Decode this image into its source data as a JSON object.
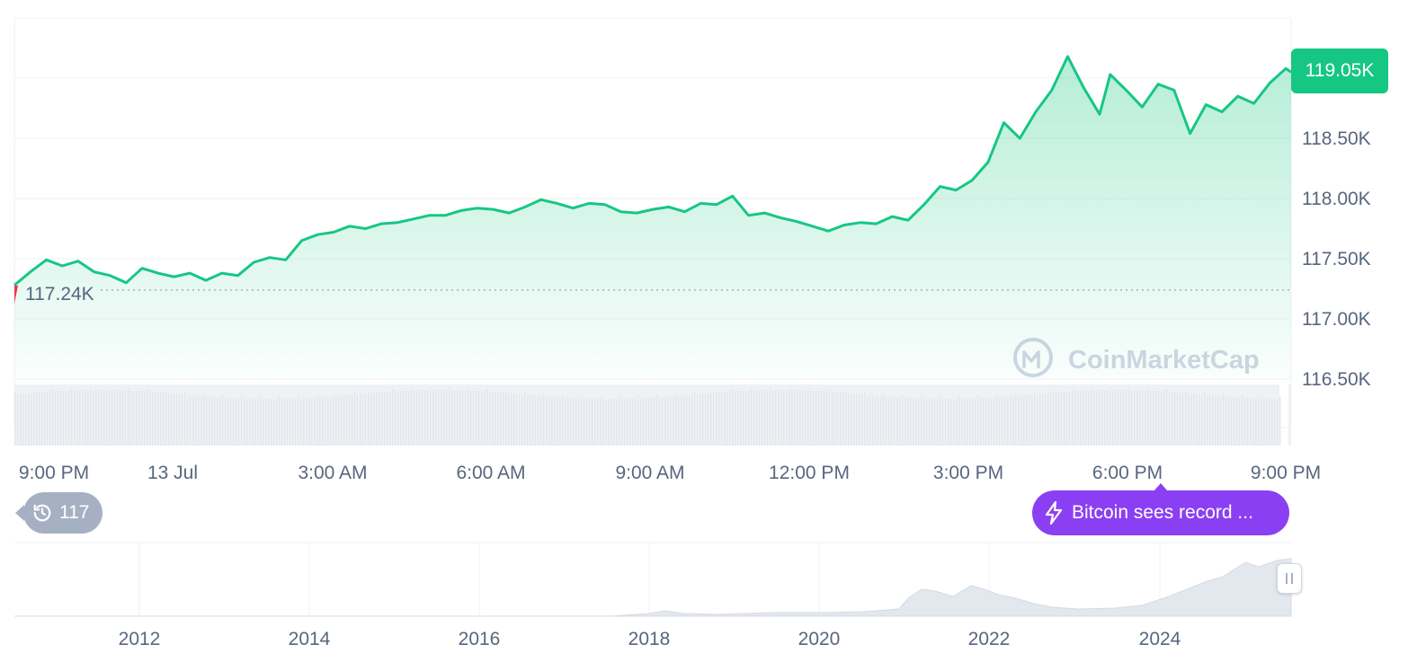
{
  "colors": {
    "up": "#16c784",
    "down": "#ea3943",
    "news": "#8b3ff2",
    "history_badge": "#a6b0c3",
    "axis_text": "#58667e",
    "watermark": "#cfd6e4"
  },
  "price_badge": {
    "value": "119.05K"
  },
  "reference_line": {
    "label": "117.24K"
  },
  "watermark": {
    "text": "CoinMarketCap",
    "icon": "coinmarketcap-logo-icon"
  },
  "history_badge": {
    "count": "117",
    "icon": "history-icon"
  },
  "news_badge": {
    "text": "Bitcoin sees record ...",
    "icon": "lightning-icon"
  },
  "navigator": {
    "ticks": [
      "2012",
      "2014",
      "2016",
      "2018",
      "2020",
      "2022",
      "2024"
    ]
  },
  "chart_data": {
    "type": "line",
    "x_ticks": [
      "9:00 PM",
      "13 Jul",
      "3:00 AM",
      "6:00 AM",
      "9:00 AM",
      "12:00 PM",
      "3:00 PM",
      "6:00 PM",
      "9:00 PM"
    ],
    "y_ticks": [
      "119.00K",
      "118.50K",
      "118.00K",
      "117.50K",
      "117.00K",
      "116.50K"
    ],
    "y_tick_values": [
      119000,
      118500,
      118000,
      117500,
      117000,
      116500
    ],
    "ylim": [
      116500,
      119500
    ],
    "xlim": [
      0,
      24
    ],
    "reference_value": 117240,
    "last_value": 119050,
    "grid": true,
    "series": [
      {
        "x": [
          0,
          0.3,
          0.6,
          0.9,
          1.2,
          1.5,
          1.8,
          2.1,
          2.4,
          2.7,
          3.0,
          3.3,
          3.6,
          3.9,
          4.2,
          4.5,
          4.8,
          5.1,
          5.4,
          5.7,
          6.0,
          6.3,
          6.6,
          6.9,
          7.2,
          7.5,
          7.8,
          8.1,
          8.4,
          8.7,
          9.0,
          9.3,
          9.6,
          9.9,
          10.2,
          10.5,
          10.8,
          11.1,
          11.4,
          11.7,
          12.0,
          12.3,
          12.6,
          12.9,
          13.2,
          13.5,
          13.8,
          14.1,
          14.4,
          14.7,
          15.0,
          15.3,
          15.6,
          15.9,
          16.2,
          16.5,
          16.8,
          17.1,
          17.4,
          17.7,
          18.0,
          18.3,
          18.6,
          18.9,
          19.2,
          19.5,
          19.8,
          20.1,
          20.4,
          20.6,
          20.9,
          21.2,
          21.5,
          21.8,
          22.1,
          22.4,
          22.7,
          23.0,
          23.3,
          23.6,
          23.9,
          24.0
        ],
        "values": [
          117280,
          117390,
          117490,
          117440,
          117480,
          117390,
          117360,
          117300,
          117420,
          117380,
          117350,
          117380,
          117320,
          117380,
          117360,
          117470,
          117510,
          117490,
          117650,
          117700,
          117720,
          117770,
          117750,
          117790,
          117800,
          117830,
          117860,
          117860,
          117900,
          117920,
          117910,
          117880,
          117930,
          117990,
          117960,
          117920,
          117960,
          117950,
          117890,
          117880,
          117910,
          117930,
          117890,
          117960,
          117950,
          118020,
          117860,
          117880,
          117840,
          117810,
          117770,
          117730,
          117780,
          117800,
          117790,
          117850,
          117820,
          117950,
          118100,
          118070,
          118150,
          118300,
          118630,
          118500,
          118720,
          118900,
          119180,
          118920,
          118700,
          119030,
          118900,
          118760,
          118950,
          118900,
          118540,
          118780,
          118720,
          118850,
          118790,
          118960,
          119080,
          119050
        ]
      }
    ]
  }
}
